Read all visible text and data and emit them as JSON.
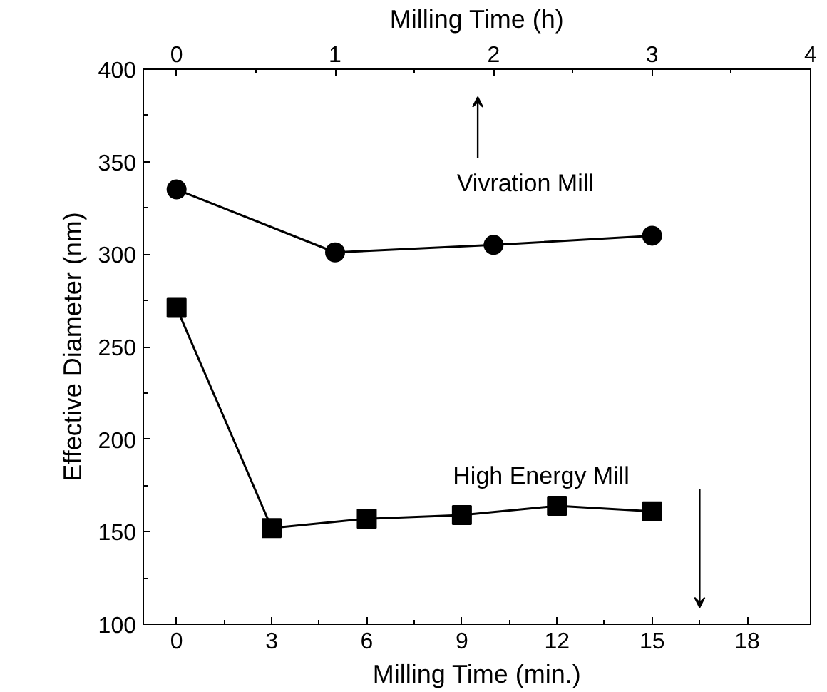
{
  "chart_data": {
    "type": "line",
    "xlabel": "Milling Time (min.)",
    "x2label": "Milling Time (h)",
    "ylabel": "Effective Diameter (nm)",
    "xlim": [
      -1.05,
      20
    ],
    "xticks": [
      0,
      3,
      6,
      9,
      12,
      15,
      18
    ],
    "x2lim": [
      -0.21,
      4
    ],
    "x2ticks": [
      0,
      1,
      2,
      3,
      4
    ],
    "ylim": [
      100,
      400
    ],
    "yticks": [
      100,
      150,
      200,
      250,
      300,
      350,
      400
    ],
    "grid": false,
    "legend": false,
    "series": [
      {
        "name": "Vivration Mill",
        "color": "#000000",
        "axis": "x2",
        "marker": "circle",
        "x": [
          0,
          1,
          2,
          3
        ],
        "values": [
          335,
          301,
          305,
          310
        ]
      },
      {
        "name": "High Energy Mill",
        "color": "#000000",
        "marker": "square",
        "x": [
          0,
          3,
          6,
          9,
          12,
          15
        ],
        "values": [
          271,
          152,
          157,
          159,
          164,
          161
        ]
      }
    ]
  }
}
